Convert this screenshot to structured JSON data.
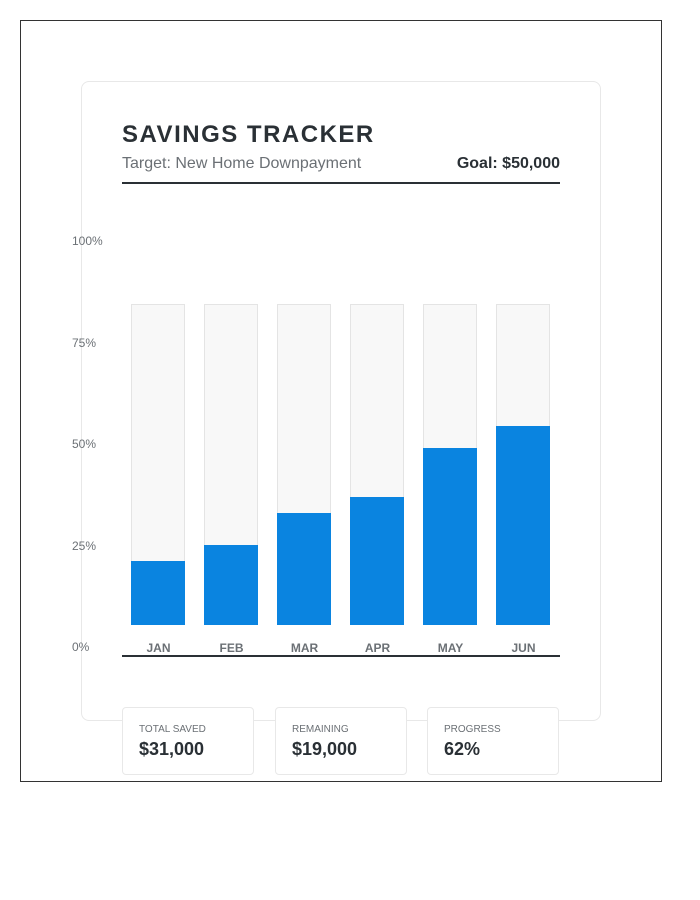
{
  "header": {
    "title": "SAVINGS TRACKER",
    "subtitle": "Target: New Home Downpayment",
    "goal": "Goal: $50,000"
  },
  "chart_data": {
    "type": "bar",
    "categories": [
      "JAN",
      "FEB",
      "MAR",
      "APR",
      "MAY",
      "JUN"
    ],
    "values": [
      20,
      25,
      35,
      40,
      55,
      62
    ],
    "ylim": [
      0,
      100
    ],
    "yticks": [
      "0%",
      "25%",
      "50%",
      "75%",
      "100%"
    ],
    "bar_color": "#0a84e0",
    "track_color": "#f8f8f8"
  },
  "stats": [
    {
      "label": "TOTAL SAVED",
      "value": "$31,000"
    },
    {
      "label": "REMAINING",
      "value": "$19,000"
    },
    {
      "label": "PROGRESS",
      "value": "62%"
    }
  ]
}
